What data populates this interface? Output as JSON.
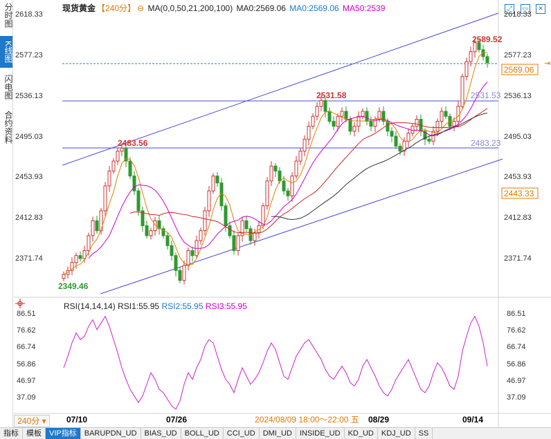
{
  "sidebar": {
    "tabs": [
      {
        "label": "分时图",
        "active": false
      },
      {
        "label": "K线图",
        "active": true
      },
      {
        "label": "闪电图",
        "active": false
      },
      {
        "label": "合约资料",
        "active": false
      }
    ]
  },
  "header": {
    "instrument": "现货黄金",
    "period": "【240分】",
    "ma_params": "MA(0,0,50,21,200,100)",
    "ma0_label": "MA0:2569.06",
    "ma0b_label": "MA0:2569.06",
    "ma50_label": "MA50:2539"
  },
  "colors": {
    "up": "#cc3333",
    "down": "#2e9a2e",
    "ma_orange": "#e08000",
    "ma_magenta": "#cc00cc",
    "ma_red": "#cc2222",
    "ma_dark": "#333333",
    "channel": "#4a4ad8",
    "rsi": "#cc22cc",
    "accent": "#1f78c8"
  },
  "price_axis": {
    "ticks": [
      "2618.33",
      "2577.23",
      "2536.13",
      "2495.03",
      "2453.93",
      "2412.83",
      "2371.74"
    ],
    "current_price": "2569.06",
    "current_line_label": "2443.33"
  },
  "annotations": {
    "high": "2589.52",
    "low": "2349.46",
    "level_2531": "2531.58",
    "level_2483": "2483.56",
    "right_2531": "2531.53",
    "right_2483": "2483.23"
  },
  "rsi": {
    "title": "RSI(14,14,14)",
    "rsi1": "RSI1:55.95",
    "rsi2": "RSI2:55.95",
    "rsi3": "RSI3:55.95",
    "ticks": [
      "86.51",
      "76.62",
      "66.74",
      "56.86",
      "46.97",
      "37.09"
    ]
  },
  "x_axis": {
    "period_badge": "240分",
    "labels": [
      "07/10",
      "07/26",
      "08/29",
      "09/14"
    ],
    "crosshair_time": "2024/08/09 18:00～22:00 五"
  },
  "bottom_tabs": [
    {
      "label": "指标",
      "active": false
    },
    {
      "label": "模板",
      "active": false
    },
    {
      "label": "VIP指标",
      "active": true
    },
    {
      "label": "BARUPDN_UD",
      "active": false
    },
    {
      "label": "BIAS_UD",
      "active": false
    },
    {
      "label": "BOLL_UD",
      "active": false
    },
    {
      "label": "CCI_UD",
      "active": false
    },
    {
      "label": "DMI_UD",
      "active": false
    },
    {
      "label": "INSIDE_UD",
      "active": false
    },
    {
      "label": "KD_UD",
      "active": false
    },
    {
      "label": "KDJ_UD",
      "active": false
    },
    {
      "label": "SS",
      "active": false
    }
  ],
  "chart_data": {
    "type": "candlestick",
    "price_ylim": [
      2340,
      2625
    ],
    "rsi_ylim": [
      30,
      90
    ],
    "closes": [
      2356,
      2360,
      2368,
      2375,
      2372,
      2380,
      2395,
      2410,
      2400,
      2420,
      2445,
      2460,
      2470,
      2480,
      2483,
      2470,
      2455,
      2440,
      2420,
      2405,
      2395,
      2400,
      2410,
      2402,
      2395,
      2385,
      2375,
      2360,
      2350,
      2365,
      2380,
      2375,
      2390,
      2400,
      2420,
      2440,
      2455,
      2448,
      2425,
      2405,
      2395,
      2380,
      2395,
      2410,
      2402,
      2390,
      2398,
      2405,
      2425,
      2450,
      2465,
      2460,
      2450,
      2440,
      2435,
      2455,
      2470,
      2480,
      2492,
      2505,
      2515,
      2525,
      2531,
      2520,
      2510,
      2505,
      2515,
      2520,
      2512,
      2500,
      2505,
      2515,
      2520,
      2510,
      2505,
      2512,
      2520,
      2510,
      2500,
      2495,
      2485,
      2480,
      2490,
      2498,
      2505,
      2512,
      2500,
      2492,
      2490,
      2500,
      2510,
      2520,
      2515,
      2505,
      2510,
      2525,
      2555,
      2570,
      2580,
      2589,
      2582,
      2575,
      2569
    ],
    "rsi_values": [
      55,
      62,
      70,
      76,
      72,
      74,
      80,
      84,
      78,
      82,
      86,
      80,
      72,
      64,
      55,
      48,
      42,
      38,
      34,
      38,
      45,
      52,
      48,
      42,
      40,
      36,
      32,
      30,
      35,
      45,
      52,
      48,
      55,
      60,
      68,
      72,
      70,
      62,
      54,
      48,
      45,
      40,
      48,
      55,
      50,
      45,
      48,
      52,
      58,
      65,
      70,
      66,
      58,
      50,
      48,
      55,
      62,
      66,
      70,
      72,
      68,
      64,
      60,
      54,
      50,
      48,
      52,
      56,
      52,
      46,
      44,
      48,
      56,
      60,
      55,
      50,
      44,
      40,
      38,
      42,
      48,
      52,
      56,
      60,
      54,
      48,
      42,
      40,
      44,
      52,
      58,
      55,
      50,
      44,
      42,
      50,
      65,
      74,
      82,
      86,
      80,
      70,
      56
    ]
  }
}
